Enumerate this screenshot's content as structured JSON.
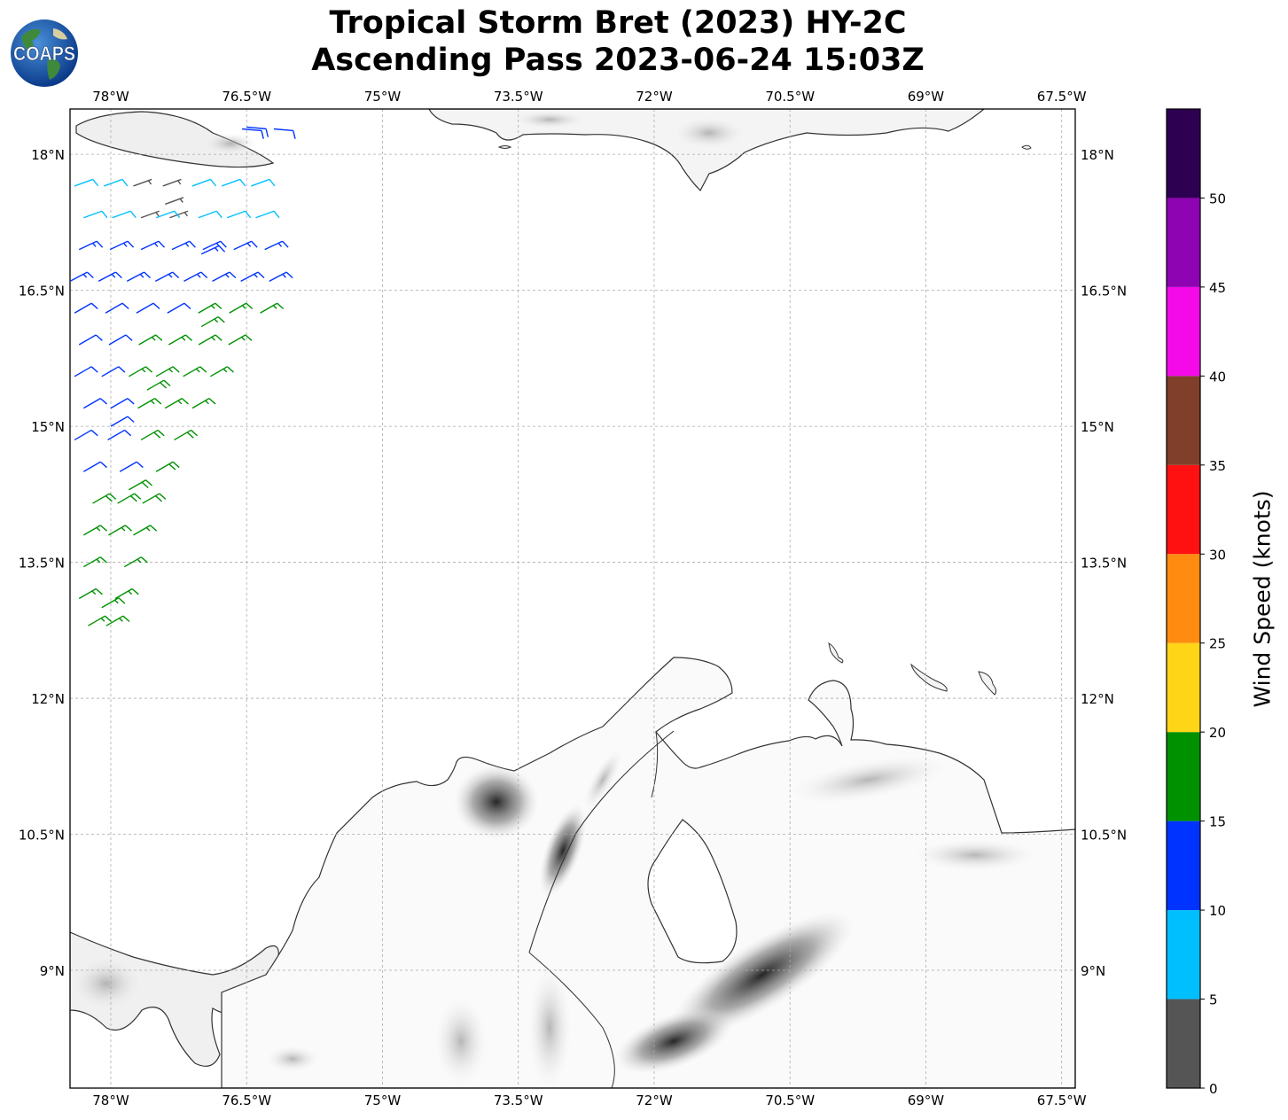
{
  "title": {
    "line1": "Tropical Storm Bret (2023) HY-2C",
    "line2": "Ascending Pass 2023-06-24 15:03Z"
  },
  "logo": {
    "text": "COAPS",
    "icon": "globe-logo-icon"
  },
  "map": {
    "lon_range": [
      -78.45,
      -67.35
    ],
    "lat_range": [
      7.7,
      18.5
    ],
    "lon_ticks": [
      {
        "value": -78.0,
        "label": "78°W"
      },
      {
        "value": -76.5,
        "label": "76.5°W"
      },
      {
        "value": -75.0,
        "label": "75°W"
      },
      {
        "value": -73.5,
        "label": "73.5°W"
      },
      {
        "value": -72.0,
        "label": "72°W"
      },
      {
        "value": -70.5,
        "label": "70.5°W"
      },
      {
        "value": -69.0,
        "label": "69°W"
      },
      {
        "value": -67.5,
        "label": "67.5°W"
      }
    ],
    "lat_ticks": [
      {
        "value": 18.0,
        "label": "18°N"
      },
      {
        "value": 16.5,
        "label": "16.5°N"
      },
      {
        "value": 15.0,
        "label": "15°N"
      },
      {
        "value": 13.5,
        "label": "13.5°N"
      },
      {
        "value": 12.0,
        "label": "12°N"
      },
      {
        "value": 10.5,
        "label": "10.5°N"
      },
      {
        "value": 9.0,
        "label": "9°N"
      }
    ],
    "gridlines": true,
    "wind_barbs": [
      {
        "lon": -77.0,
        "lat": 16.1,
        "speed_kt": 17,
        "dir_deg": 60
      },
      {
        "lon": -77.6,
        "lat": 15.4,
        "speed_kt": 18,
        "dir_deg": 60
      },
      {
        "lon": -77.8,
        "lat": 14.3,
        "speed_kt": 18,
        "dir_deg": 60
      },
      {
        "lon": -78.1,
        "lat": 13.0,
        "speed_kt": 17,
        "dir_deg": 60
      },
      {
        "lon": -77.0,
        "lat": 16.9,
        "speed_kt": 13,
        "dir_deg": 65
      },
      {
        "lon": -78.0,
        "lat": 15.0,
        "speed_kt": 12,
        "dir_deg": 60
      },
      {
        "lon": -77.5,
        "lat": 17.3,
        "speed_kt": 8,
        "dir_deg": 70
      },
      {
        "lon": -76.5,
        "lat": 18.3,
        "speed_kt": 12,
        "dir_deg": 95
      },
      {
        "lon": -77.4,
        "lat": 17.45,
        "speed_kt": 3,
        "dir_deg": 70
      }
    ]
  },
  "colorbar": {
    "label": "Wind Speed (knots)",
    "bins": [
      {
        "min": 0,
        "max": 5,
        "color": "#555555"
      },
      {
        "min": 5,
        "max": 10,
        "color": "#00bfff"
      },
      {
        "min": 10,
        "max": 15,
        "color": "#0033ff"
      },
      {
        "min": 15,
        "max": 20,
        "color": "#009100"
      },
      {
        "min": 20,
        "max": 25,
        "color": "#ffd517"
      },
      {
        "min": 25,
        "max": 30,
        "color": "#ff8c11"
      },
      {
        "min": 30,
        "max": 35,
        "color": "#ff1111"
      },
      {
        "min": 35,
        "max": 40,
        "color": "#7f3f2a"
      },
      {
        "min": 40,
        "max": 45,
        "color": "#f40ae8"
      },
      {
        "min": 45,
        "max": 50,
        "color": "#8e03b2"
      },
      {
        "min": 50,
        "max": 55,
        "color": "#2e0052"
      }
    ],
    "ticks": [
      "0",
      "5",
      "10",
      "15",
      "20",
      "25",
      "30",
      "35",
      "40",
      "45",
      "50"
    ]
  }
}
